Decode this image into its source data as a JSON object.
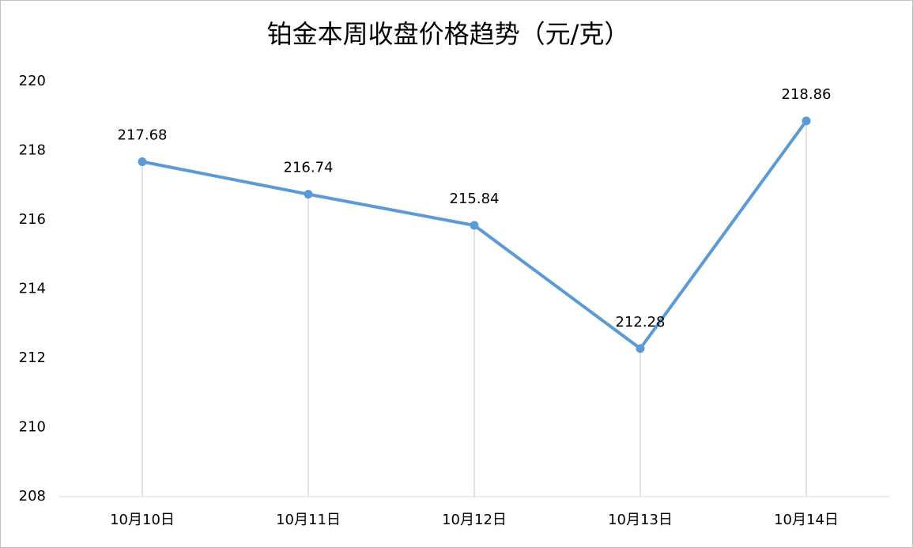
{
  "chart_data": {
    "type": "line",
    "title": "铂金本周收盘价格趋势（元/克）",
    "categories": [
      "10月10日",
      "10月11日",
      "10月12日",
      "10月13日",
      "10月14日"
    ],
    "values": [
      217.68,
      216.74,
      215.84,
      212.28,
      218.86
    ],
    "color": "#5b9bd5",
    "ylim": [
      208,
      220
    ],
    "yticks": [
      208,
      210,
      212,
      214,
      216,
      218,
      220
    ],
    "drop_lines": true,
    "data_labels": true
  }
}
